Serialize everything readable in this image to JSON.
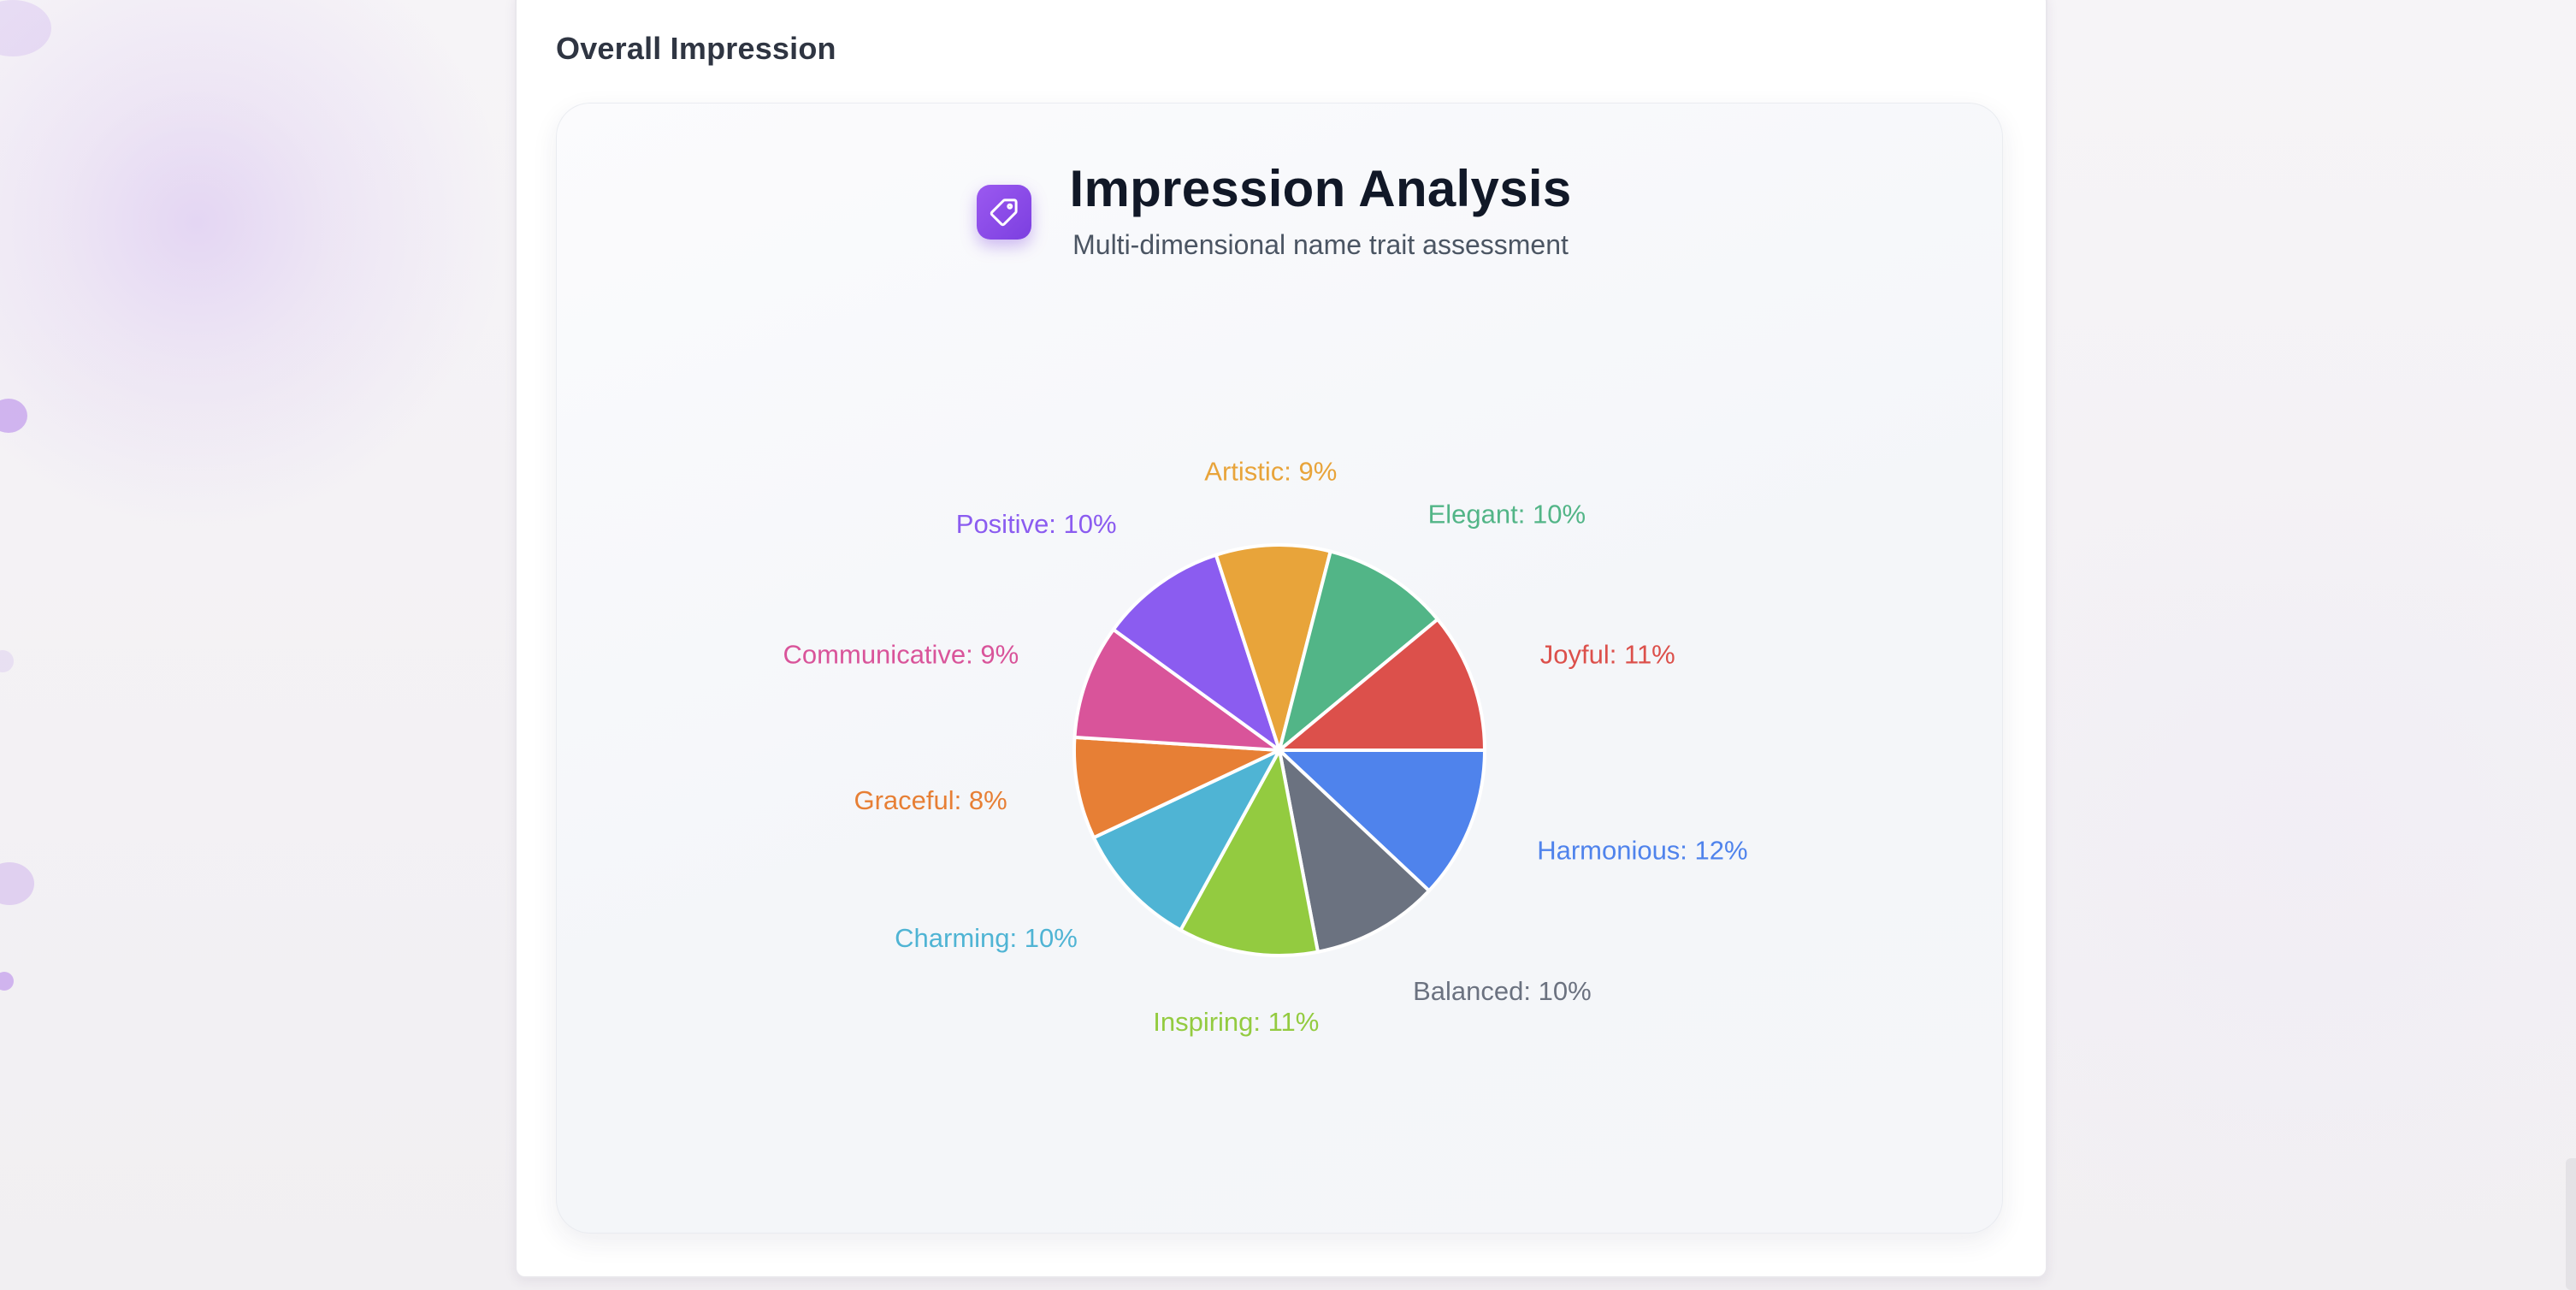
{
  "section": {
    "title": "Overall Impression"
  },
  "card": {
    "icon": "tag-icon",
    "title": "Impression Analysis",
    "subtitle": "Multi-dimensional name trait assessment",
    "accent": "#8b4ae8"
  },
  "chart_data": {
    "type": "pie",
    "title": "Impression Analysis",
    "subtitle": "Multi-dimensional name trait assessment",
    "legend": "none",
    "labels_format": "{name}: {value}%",
    "slices": [
      {
        "name": "Harmonious",
        "value": 12,
        "label": "Harmonious: 12%",
        "color": "#4f83ec"
      },
      {
        "name": "Balanced",
        "value": 10,
        "label": "Balanced: 10%",
        "color": "#6b7280"
      },
      {
        "name": "Inspiring",
        "value": 11,
        "label": "Inspiring: 11%",
        "color": "#93cb40"
      },
      {
        "name": "Charming",
        "value": 10,
        "label": "Charming: 10%",
        "color": "#4fb4d4"
      },
      {
        "name": "Graceful",
        "value": 8,
        "label": "Graceful: 8%",
        "color": "#e77f35"
      },
      {
        "name": "Communicative",
        "value": 9,
        "label": "Communicative: 9%",
        "color": "#d9549a"
      },
      {
        "name": "Positive",
        "value": 10,
        "label": "Positive: 10%",
        "color": "#8b5cf0"
      },
      {
        "name": "Artistic",
        "value": 9,
        "label": "Artistic: 9%",
        "color": "#e8a43a"
      },
      {
        "name": "Elegant",
        "value": 10,
        "label": "Elegant: 10%",
        "color": "#52b587"
      },
      {
        "name": "Joyful",
        "value": 11,
        "label": "Joyful: 11%",
        "color": "#dc504b"
      }
    ]
  }
}
